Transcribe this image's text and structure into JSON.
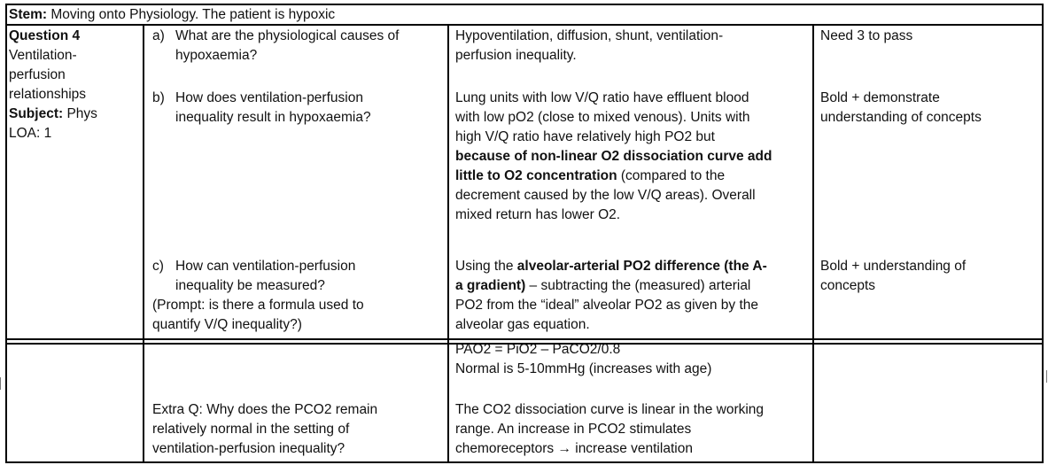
{
  "stem": {
    "label": "Stem:",
    "text": " Moving onto Physiology. The patient is hypoxic"
  },
  "question_info": {
    "title": "Question 4",
    "topic_lines": [
      "Ventilation-",
      "perfusion",
      "relationships"
    ],
    "subject_label": "Subject:",
    "subject_value": " Phys",
    "loa": "LOA:  1"
  },
  "rows": {
    "a": {
      "marker": "a)",
      "question_lines": [
        "What are the physiological causes of",
        "hypoxaemia?"
      ],
      "answer_lines": [
        "Hypoventilation, diffusion, shunt, ventilation-",
        "perfusion inequality."
      ],
      "criteria": "Need 3 to pass"
    },
    "b": {
      "marker": "b)",
      "question_lines": [
        "How does ventilation-perfusion",
        "inequality result in hypoxaemia?"
      ],
      "answer_lines": [
        "Lung units with low V/Q ratio have effluent blood",
        "with low pO2 (close to mixed venous). Units with",
        "high V/Q ratio have relatively high PO2 but"
      ],
      "answer_bold_1": "because of non-linear O2 dissociation curve add",
      "answer_bold_2": "little to O2 concentration",
      "answer_after_bold": " (compared to the",
      "answer_tail_lines": [
        "decrement caused by the low V/Q areas). Overall",
        "mixed return has lower O2."
      ],
      "criteria_lines": [
        "Bold + demonstrate",
        "understanding of concepts"
      ]
    },
    "c": {
      "marker": "c)",
      "question_lines": [
        "How can ventilation-perfusion",
        "inequality be measured?"
      ],
      "prompt_lines": [
        "(Prompt: is there a formula used to",
        "quantify V/Q inequality?)"
      ],
      "answer_start": "Using the ",
      "answer_bold_1": "alveolar-arterial PO2 difference (the A-",
      "answer_bold_2": "a gradient)",
      "answer_mid": " – subtracting the (measured) arterial",
      "answer_lines": [
        "PO2 from the “ideal” alveolar PO2 as given by the",
        "alveolar gas equation."
      ],
      "criteria_lines": [
        "Bold + understanding of",
        "concepts"
      ]
    },
    "continuation": {
      "formula": "PAO2 = PiO2 – PaCO2/0.8",
      "normal": "Normal is 5-10mmHg (increases with age)"
    },
    "extra": {
      "question_lines": [
        "Extra Q: Why does the PCO2 remain",
        "relatively normal in the setting of",
        "ventilation-perfusion inequality?"
      ],
      "answer_lines": [
        "The CO2 dissociation curve is linear in the working",
        "range. An increase in PCO2 stimulates"
      ],
      "answer_last": "chemoreceptors → increase ventilation"
    }
  }
}
